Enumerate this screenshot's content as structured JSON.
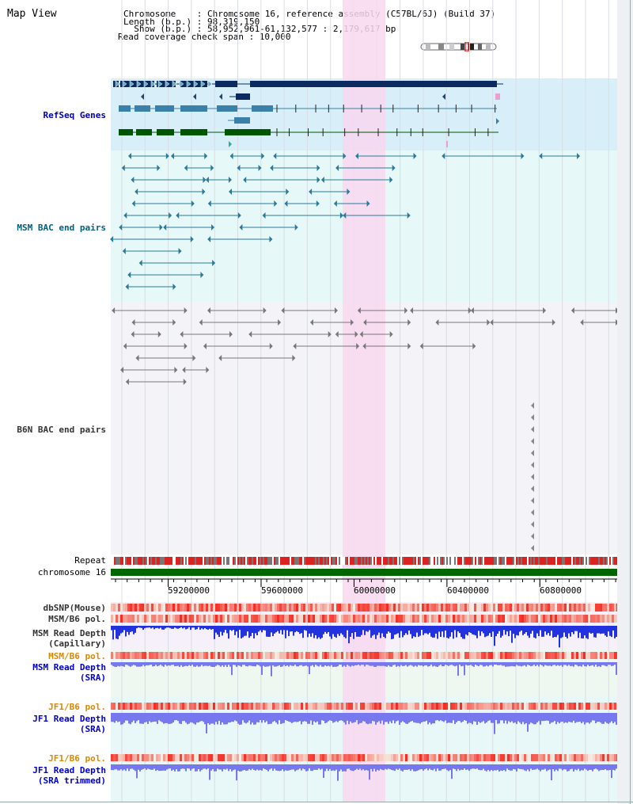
{
  "view_title": "Map View",
  "info": {
    "chromosome_line": "Chromosome    : Chromosome 16, reference assembly (C57BL/6J) (Build 37)",
    "length_line": "Length (b.p.) : 98,319,150",
    "show_line": "  Show (b.p.) : 58,952,961-61,132,577 : 2,179,617 bp",
    "coverage_line": "Read coverage check span : 10,000"
  },
  "tracks": {
    "refseq": {
      "label": "RefSeq Genes",
      "color": "#0000aa"
    },
    "msm_bac": {
      "label": "MSM BAC end pairs",
      "color": "#006080"
    },
    "b6n_bac": {
      "label": "B6N BAC end pairs",
      "color": "#333333"
    },
    "repeat": {
      "label": "Repeat"
    },
    "chromosome": {
      "label": "chromosome 16"
    },
    "dbsnp": {
      "label": "dbSNP(Mouse)",
      "color": "#333333"
    },
    "msm_b6_pol_1": {
      "label": "MSM/B6 pol.",
      "color": "#333333"
    },
    "msm_read_depth_cap": {
      "label": "MSM Read Depth\n(Capillary)",
      "color": "#333333"
    },
    "msm_b6_pol_2": {
      "label": "MSM/B6 pol.",
      "color": "#dd8800"
    },
    "msm_read_depth_sra": {
      "label": "MSM Read Depth\n(SRA)",
      "color": "#0000cc"
    },
    "jf1_b6_pol_1": {
      "label": "JF1/B6 pol.",
      "color": "#dd8800"
    },
    "jf1_read_depth_sra": {
      "label": "JF1 Read Depth\n(SRA)",
      "color": "#0000cc"
    },
    "jf1_b6_pol_2": {
      "label": "JF1/B6 pol.",
      "color": "#dd8800"
    },
    "jf1_read_depth_trim": {
      "label": "JF1 Read Depth\n(SRA trimmed)",
      "color": "#0000cc"
    }
  },
  "axis": {
    "ticks": [
      {
        "label": "59200000",
        "value": 59200000
      },
      {
        "label": "59600000",
        "value": 59600000
      },
      {
        "label": "60000000",
        "value": 60000000
      },
      {
        "label": "60400000",
        "value": 60400000
      },
      {
        "label": "60800000",
        "value": 60800000
      }
    ]
  },
  "colors": {
    "highlight": "#f8d8f0",
    "refseq_bg": "#d8eef8",
    "msm_bg": "#e6f8f8",
    "b6n_bg": "#f4f4f8",
    "chromosome_bar": "#006600",
    "repeat_red": "#dd2222",
    "depth_blue_dark": "#2233dd",
    "depth_blue_light": "#7777ee"
  }
}
